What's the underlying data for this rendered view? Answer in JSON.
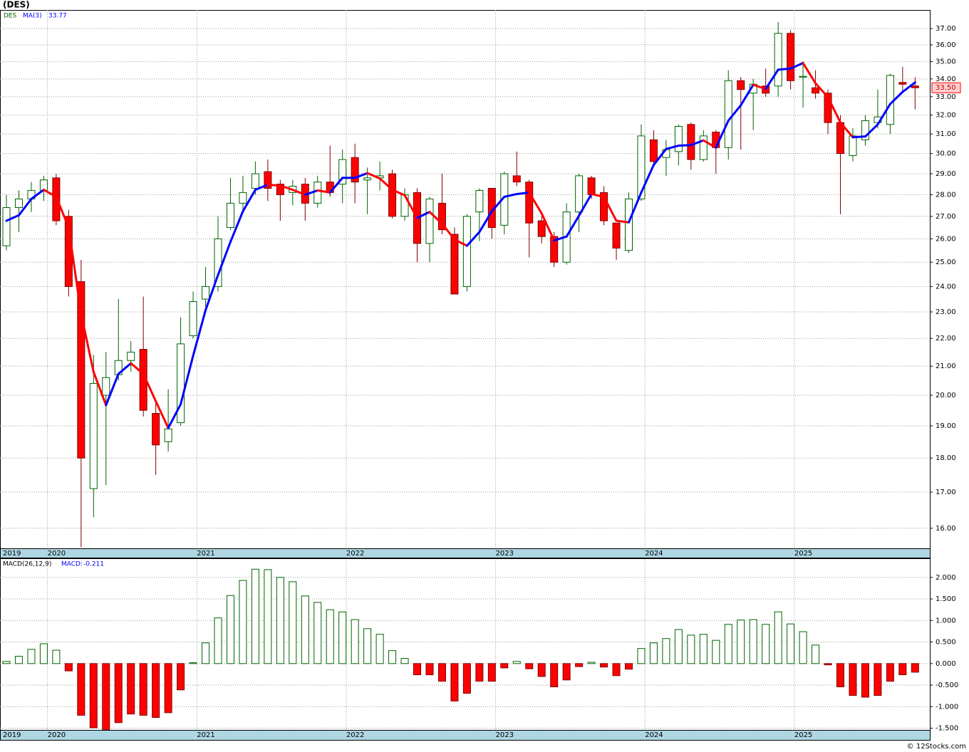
{
  "chart_data": [
    {
      "type": "candlestick",
      "title": "(DES)",
      "symbol": "DES",
      "log_scale": true,
      "grid": true,
      "categories": [
        "2019",
        null,
        null,
        null,
        "2020",
        null,
        null,
        null,
        null,
        null,
        null,
        null,
        null,
        null,
        null,
        null,
        "2021",
        null,
        null,
        null,
        null,
        null,
        null,
        null,
        null,
        null,
        null,
        null,
        "2022",
        null,
        null,
        null,
        null,
        null,
        null,
        null,
        null,
        null,
        null,
        null,
        "2023",
        null,
        null,
        null,
        null,
        null,
        null,
        null,
        null,
        null,
        null,
        null,
        "2024",
        null,
        null,
        null,
        null,
        null,
        null,
        null,
        null,
        null,
        null,
        null,
        "2025",
        null,
        null,
        null,
        null,
        null,
        null,
        null,
        null,
        null
      ],
      "open": [
        25.7,
        27.4,
        27.8,
        28.2,
        28.8,
        27,
        24.2,
        17.1,
        20,
        20.7,
        21.2,
        21.6,
        19.4,
        18.5,
        19.1,
        22.1,
        23.5,
        24,
        26.5,
        27.6,
        28.3,
        29.1,
        28.5,
        28.1,
        28.5,
        27.6,
        28.6,
        28.5,
        29.8,
        28.7,
        28.8,
        29,
        27,
        28.1,
        25.8,
        27.6,
        26.2,
        24,
        27.2,
        28.3,
        26.6,
        28.9,
        28.6,
        26.8,
        26.1,
        25,
        27.2,
        28.8,
        28.1,
        26.7,
        25.5,
        27.8,
        30.7,
        29.8,
        30.1,
        31.5,
        29.7,
        31.1,
        30.3,
        33.9,
        33.2,
        33.6,
        33.6,
        36.7,
        34.1,
        33.5,
        33.2,
        31.6,
        29.9,
        30.7,
        31.6,
        31.5,
        33.8,
        33.6
      ],
      "high": [
        28,
        28.2,
        28.6,
        28.9,
        29,
        27.3,
        25.1,
        21.4,
        21.5,
        23.5,
        21.9,
        23.6,
        19.8,
        20.2,
        22.8,
        23.8,
        24.8,
        27,
        28.8,
        28.9,
        29.6,
        29.7,
        28.7,
        28.7,
        28.8,
        28.9,
        30.4,
        30.2,
        30.5,
        29.3,
        29.6,
        29.2,
        28.3,
        28.3,
        27.9,
        29,
        26.5,
        27.1,
        28.3,
        28.3,
        29.1,
        30.1,
        28.7,
        27,
        26.3,
        27.6,
        29,
        28.9,
        28.4,
        26.7,
        28.1,
        31.5,
        31.2,
        30.7,
        31.5,
        31.6,
        31.2,
        31.2,
        34.5,
        34.1,
        34,
        34.6,
        37.4,
        36.9,
        35,
        34.5,
        33.4,
        32,
        31.3,
        32,
        33.4,
        34.3,
        34.7,
        34.1
      ],
      "low": [
        25.5,
        26.3,
        27.2,
        27.7,
        26.6,
        23.6,
        15.5,
        16.3,
        17.2,
        20.5,
        20.8,
        19.3,
        17.5,
        18.2,
        19,
        22,
        23.2,
        23.8,
        26.4,
        27.2,
        28,
        27.7,
        26.8,
        27.5,
        26.8,
        27.4,
        27.9,
        27.6,
        27.6,
        27.1,
        28.2,
        26.9,
        26.8,
        25,
        25,
        26.2,
        23.7,
        23.8,
        25.9,
        26,
        26.2,
        28.4,
        25.2,
        25.8,
        24.8,
        24.9,
        26.3,
        27.8,
        26.6,
        25.1,
        25.4,
        27.7,
        29.4,
        28.9,
        29.4,
        29.2,
        29.6,
        29,
        29.7,
        30.2,
        31.2,
        33,
        33,
        33.4,
        32.4,
        32.9,
        31,
        27.1,
        29.6,
        30.4,
        31.3,
        31,
        33.2,
        32.3
      ],
      "close": [
        27.4,
        27.8,
        28.2,
        28.7,
        26.8,
        24,
        18,
        20.4,
        20.6,
        21.2,
        21.5,
        19.5,
        18.4,
        18.9,
        21.8,
        23.4,
        24,
        26,
        27.6,
        28.1,
        29,
        28.3,
        28,
        28.4,
        27.6,
        28.6,
        28.1,
        29.7,
        28.6,
        28.8,
        28.9,
        27,
        28,
        25.8,
        27.8,
        26.4,
        23.7,
        27,
        28.2,
        26.5,
        29,
        28.6,
        26.7,
        26.1,
        25,
        27.2,
        28.9,
        28,
        26.8,
        25.6,
        27.8,
        30.9,
        29.6,
        30.2,
        31.4,
        29.7,
        30.9,
        30.3,
        33.9,
        33.4,
        33.7,
        33.2,
        36.7,
        33.9,
        34.15,
        33.2,
        31.6,
        30,
        30.9,
        31.7,
        31.9,
        34.2,
        33.7,
        33.5
      ],
      "up_color": "#006400",
      "down_color": "#ff0000",
      "series": [
        {
          "name": "MA(3)",
          "color": "#0000ff",
          "down_color": "#ff0000",
          "last_value": 33.77,
          "values": [
            26.8,
            27.05,
            27.8,
            28.23,
            27.9,
            26.5,
            22.93,
            20.8,
            19.67,
            20.73,
            21.1,
            20.73,
            19.8,
            18.93,
            19.7,
            21.37,
            23.07,
            24.47,
            25.87,
            27.23,
            28.23,
            28.47,
            28.43,
            28.23,
            28,
            28.2,
            28.1,
            28.8,
            28.8,
            29.03,
            28.77,
            28.23,
            27.97,
            26.93,
            27.2,
            26.67,
            25.97,
            25.7,
            26.3,
            27.23,
            27.9,
            28.03,
            28.1,
            27.13,
            25.93,
            26.1,
            27.03,
            28.03,
            27.9,
            26.8,
            26.73,
            28.1,
            29.43,
            30.23,
            30.4,
            30.43,
            30.67,
            30.3,
            31.7,
            32.53,
            33.67,
            33.43,
            34.53,
            34.6,
            34.92,
            33.75,
            32.98,
            31.6,
            30.83,
            30.87,
            31.5,
            32.6,
            33.27,
            33.8
          ]
        }
      ],
      "last_price": {
        "value": 33.5,
        "label": "33.50"
      },
      "ylim": [
        15.47,
        38.17
      ],
      "yticks": [
        {
          "value": 16,
          "label": "16.00"
        },
        {
          "value": 17,
          "label": "17.00"
        },
        {
          "value": 18,
          "label": "18.00"
        },
        {
          "value": 19,
          "label": "19.00"
        },
        {
          "value": 20,
          "label": "20.00"
        },
        {
          "value": 21,
          "label": "21.00"
        },
        {
          "value": 22,
          "label": "22.00"
        },
        {
          "value": 23,
          "label": "23.00"
        },
        {
          "value": 24,
          "label": "24.00"
        },
        {
          "value": 25,
          "label": "25.00"
        },
        {
          "value": 26,
          "label": "26.00"
        },
        {
          "value": 27,
          "label": "27.00"
        },
        {
          "value": 28,
          "label": "28.00"
        },
        {
          "value": 29,
          "label": "29.00"
        },
        {
          "value": 30,
          "label": "30.00"
        },
        {
          "value": 31,
          "label": "31.00"
        },
        {
          "value": 32,
          "label": "32.00"
        },
        {
          "value": 33,
          "label": "33.00"
        },
        {
          "value": 34,
          "label": "34.00"
        },
        {
          "value": 35,
          "label": "35.00"
        },
        {
          "value": 36,
          "label": "36.00"
        },
        {
          "value": 37,
          "label": "37.00"
        }
      ]
    },
    {
      "type": "bar",
      "title": "MACD(26,12,9)",
      "value_name": "MACD:",
      "value": -0.211,
      "grid": true,
      "pos_color": "#006400",
      "neg_color": "#ff0000",
      "values": [
        0.05,
        0.17,
        0.33,
        0.46,
        0.31,
        -0.17,
        -1.2,
        -1.49,
        -1.53,
        -1.37,
        -1.17,
        -1.2,
        -1.25,
        -1.14,
        -0.61,
        0.02,
        0.48,
        1.06,
        1.58,
        1.93,
        2.19,
        2.18,
        2.0,
        1.9,
        1.57,
        1.42,
        1.25,
        1.2,
        1.02,
        0.81,
        0.68,
        0.3,
        0.12,
        -0.26,
        -0.26,
        -0.41,
        -0.87,
        -0.69,
        -0.41,
        -0.41,
        -0.1,
        0.05,
        -0.12,
        -0.3,
        -0.54,
        -0.38,
        -0.07,
        0.03,
        -0.08,
        -0.28,
        -0.13,
        0.35,
        0.48,
        0.58,
        0.79,
        0.66,
        0.68,
        0.54,
        0.91,
        1.01,
        1.02,
        0.91,
        1.2,
        0.92,
        0.74,
        0.43,
        -0.03,
        -0.54,
        -0.74,
        -0.78,
        -0.74,
        -0.41,
        -0.26,
        -0.2
      ],
      "ylim": [
        -1.54,
        2.41
      ],
      "yticks": [
        {
          "value": -1.5,
          "label": "-1.500"
        },
        {
          "value": -1,
          "label": "-1.000"
        },
        {
          "value": -0.5,
          "label": "-0.500"
        },
        {
          "value": 0,
          "label": "0.000"
        },
        {
          "value": 0.5,
          "label": "0.500"
        },
        {
          "value": 1,
          "label": "1.000"
        },
        {
          "value": 1.5,
          "label": "1.500"
        },
        {
          "value": 2,
          "label": "2.000"
        }
      ]
    }
  ],
  "footer": "© 12Stocks.com"
}
